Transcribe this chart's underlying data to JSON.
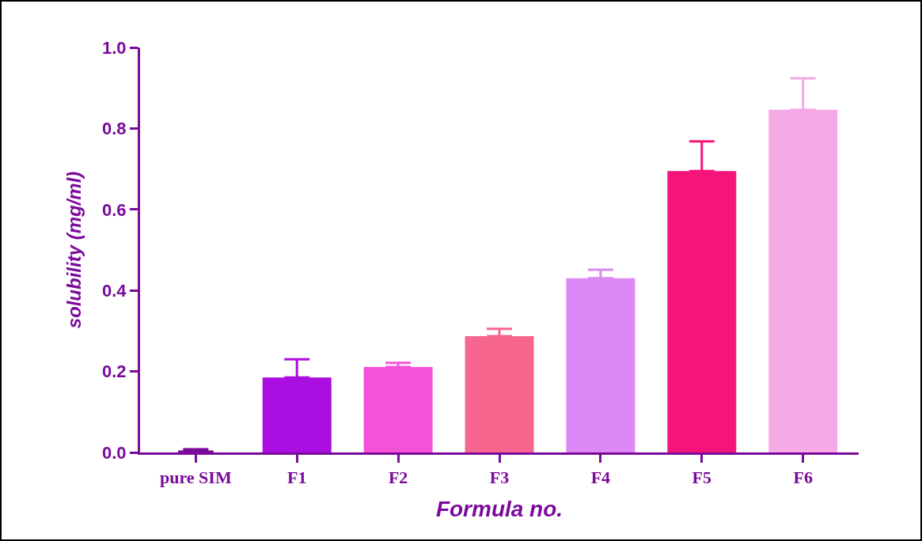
{
  "chart_data": {
    "type": "bar",
    "xlabel": "Formula no.",
    "ylabel": "solubility (mg/ml)",
    "categories": [
      "pure SIM",
      "F1",
      "F2",
      "F3",
      "F4",
      "F5",
      "F6"
    ],
    "values": [
      0.005,
      0.185,
      0.211,
      0.287,
      0.43,
      0.695,
      0.846
    ],
    "errors": [
      [
        0.005,
        0.008
      ],
      [
        0.185,
        0.23
      ],
      [
        0.211,
        0.221
      ],
      [
        0.287,
        0.305
      ],
      [
        0.43,
        0.451
      ],
      [
        0.695,
        0.768
      ],
      [
        0.846,
        0.924
      ]
    ],
    "colors": [
      "#7a0a9a",
      "#ab0ee0",
      "#f552d8",
      "#f7668f",
      "#dc88f5",
      "#f5157a",
      "#f5aae6"
    ],
    "ylim": [
      0,
      1.0
    ],
    "yticks": [
      {
        "value": 0,
        "label": "0.0"
      },
      0.2,
      0.4,
      0.6,
      0.8,
      {
        "value": 1,
        "label": "1.0"
      }
    ],
    "grid": false
  }
}
